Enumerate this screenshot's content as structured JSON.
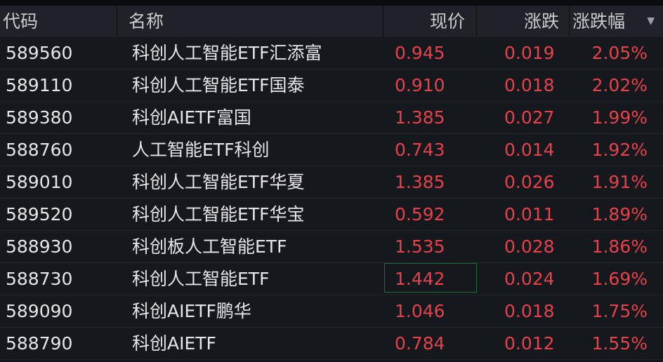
{
  "header": {
    "code": "代码",
    "name": "名称",
    "price": "现价",
    "change": "涨跌",
    "pct": "涨跌幅",
    "sort_icon": "▼"
  },
  "colors": {
    "up": "#e8414a",
    "text": "#e4e6ea",
    "header_bg": "#1f2229",
    "row_bg": "#15181d",
    "selection": "#1f6b3a"
  },
  "rows": [
    {
      "code": "589560",
      "name": "科创人工智能ETF汇添富",
      "price": "0.945",
      "change": "0.019",
      "pct": "2.05%"
    },
    {
      "code": "589110",
      "name": "科创人工智能ETF国泰",
      "price": "0.910",
      "change": "0.018",
      "pct": "2.02%"
    },
    {
      "code": "589380",
      "name": "科创AIETF富国",
      "price": "1.385",
      "change": "0.027",
      "pct": "1.99%"
    },
    {
      "code": "588760",
      "name": "人工智能ETF科创",
      "price": "0.743",
      "change": "0.014",
      "pct": "1.92%"
    },
    {
      "code": "589010",
      "name": "科创人工智能ETF华夏",
      "price": "1.385",
      "change": "0.026",
      "pct": "1.91%"
    },
    {
      "code": "589520",
      "name": "科创人工智能ETF华宝",
      "price": "0.592",
      "change": "0.011",
      "pct": "1.89%"
    },
    {
      "code": "588930",
      "name": "科创板人工智能ETF",
      "price": "1.535",
      "change": "0.028",
      "pct": "1.86%"
    },
    {
      "code": "588730",
      "name": "科创人工智能ETF",
      "price": "1.442",
      "change": "0.024",
      "pct": "1.69%",
      "selected_cell": "price"
    },
    {
      "code": "589090",
      "name": "科创AIETF鹏华",
      "price": "1.046",
      "change": "0.018",
      "pct": "1.75%"
    },
    {
      "code": "588790",
      "name": "科创AIETF",
      "price": "0.784",
      "change": "0.012",
      "pct": "1.55%"
    }
  ]
}
